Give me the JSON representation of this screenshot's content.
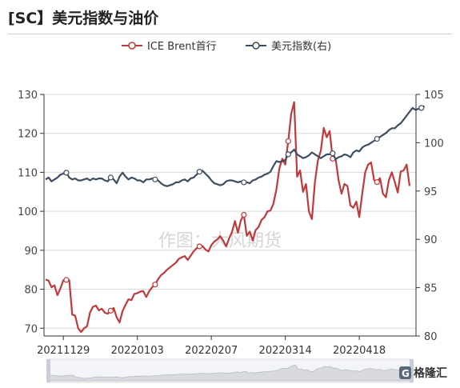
{
  "title": "[SC】美元指数与油价",
  "watermark": "作图：大风期货",
  "logo": {
    "text": "格隆汇",
    "mark": "G"
  },
  "colors": {
    "brent": "#c0393b",
    "dxy": "#3e4e60",
    "axis": "#333333",
    "grid": "#d9d9d9"
  },
  "chart_data": {
    "type": "line",
    "legend": {
      "placement": "top-center"
    },
    "x_ticks": [
      "20211129",
      "20220103",
      "20220207",
      "20220314",
      "20220418"
    ],
    "x_tick_index": [
      6,
      31,
      56,
      81,
      106
    ],
    "left_axis": {
      "ylim": [
        68,
        130
      ],
      "ticks": [
        70,
        80,
        90,
        100,
        110,
        120,
        130
      ]
    },
    "right_axis": {
      "ylim": [
        80,
        105
      ],
      "ticks": [
        80,
        85,
        90,
        95,
        100,
        105
      ]
    },
    "grid": true,
    "series": [
      {
        "name": "ICE Brent首行",
        "axis": "left",
        "color": "#c0393b",
        "marker_every": 15,
        "values": [
          82.5,
          82.2,
          80.5,
          81.0,
          78.5,
          80.2,
          82.3,
          82.4,
          82.3,
          73.5,
          73.2,
          70.0,
          69.0,
          70.0,
          70.5,
          74.0,
          75.5,
          75.8,
          74.6,
          75.0,
          74.0,
          73.7,
          74.5,
          75.2,
          72.8,
          71.5,
          74.4,
          76.0,
          77.4,
          77.2,
          78.8,
          79.0,
          79.4,
          79.5,
          78.0,
          79.5,
          80.5,
          81.2,
          82.6,
          83.6,
          84.2,
          85.0,
          85.6,
          86.2,
          86.8,
          87.8,
          88.2,
          88.5,
          87.5,
          88.6,
          89.7,
          90.5,
          91.0,
          91.1,
          90.2,
          89.7,
          91.3,
          92.2,
          92.8,
          93.6,
          92.5,
          91.0,
          93.0,
          94.7,
          97.5,
          94.5,
          97.7,
          99.1,
          93.7,
          94.8,
          92.5,
          95.2,
          96.0,
          97.8,
          98.5,
          100.0,
          100.2,
          102.0,
          105.6,
          111.0,
          113.5,
          112.0,
          118.0,
          125.0,
          128.0,
          108.9,
          110.5,
          105.0,
          107.0,
          99.9,
          98.0,
          107.4,
          113.0,
          115.5,
          121.4,
          119.0,
          120.6,
          113.5,
          113.5,
          108.0,
          104.5,
          107.0,
          106.5,
          101.5,
          100.9,
          102.5,
          98.5,
          104.5,
          110.0,
          112.0,
          112.5,
          108.0,
          107.5,
          108.5,
          104.5,
          103.6,
          108.0,
          110.0,
          107.5,
          104.8,
          110.2,
          110.5,
          112.0,
          106.5
        ]
      },
      {
        "name": "美元指数(右)",
        "axis": "right",
        "color": "#3e4e60",
        "marker_every": 15,
        "values": [
          96.2,
          96.4,
          96.0,
          96.2,
          96.4,
          96.7,
          96.8,
          96.9,
          96.4,
          96.2,
          96.3,
          96.1,
          96.1,
          96.2,
          96.3,
          96.1,
          96.3,
          96.2,
          96.3,
          96.3,
          96.1,
          96.0,
          96.4,
          96.2,
          95.8,
          96.5,
          96.9,
          96.5,
          96.2,
          96.4,
          96.3,
          96.1,
          96.1,
          95.9,
          96.2,
          96.2,
          96.3,
          96.2,
          96.1,
          95.8,
          95.6,
          95.5,
          95.6,
          95.7,
          95.9,
          95.9,
          96.1,
          96.2,
          96.0,
          96.3,
          96.4,
          96.7,
          97.0,
          97.1,
          96.8,
          96.5,
          96.1,
          95.8,
          95.7,
          95.6,
          95.7,
          96.0,
          96.1,
          96.1,
          96.0,
          95.9,
          96.0,
          95.9,
          95.9,
          95.8,
          96.1,
          96.2,
          96.4,
          96.5,
          96.7,
          96.8,
          97.0,
          97.6,
          98.1,
          98.0,
          98.1,
          98.2,
          98.8,
          99.0,
          99.3,
          98.8,
          98.6,
          98.4,
          98.5,
          98.7,
          99.0,
          98.8,
          98.6,
          98.4,
          98.6,
          98.8,
          98.8,
          98.9,
          98.3,
          98.5,
          98.6,
          98.8,
          98.7,
          98.5,
          99.0,
          99.2,
          99.1,
          99.5,
          99.7,
          99.8,
          100.0,
          100.2,
          100.4,
          100.6,
          100.8,
          101.0,
          101.3,
          101.5,
          101.5,
          101.8,
          102.0,
          102.4,
          102.8,
          103.2,
          103.6,
          103.4,
          103.5,
          103.6,
          103.8
        ]
      }
    ]
  }
}
